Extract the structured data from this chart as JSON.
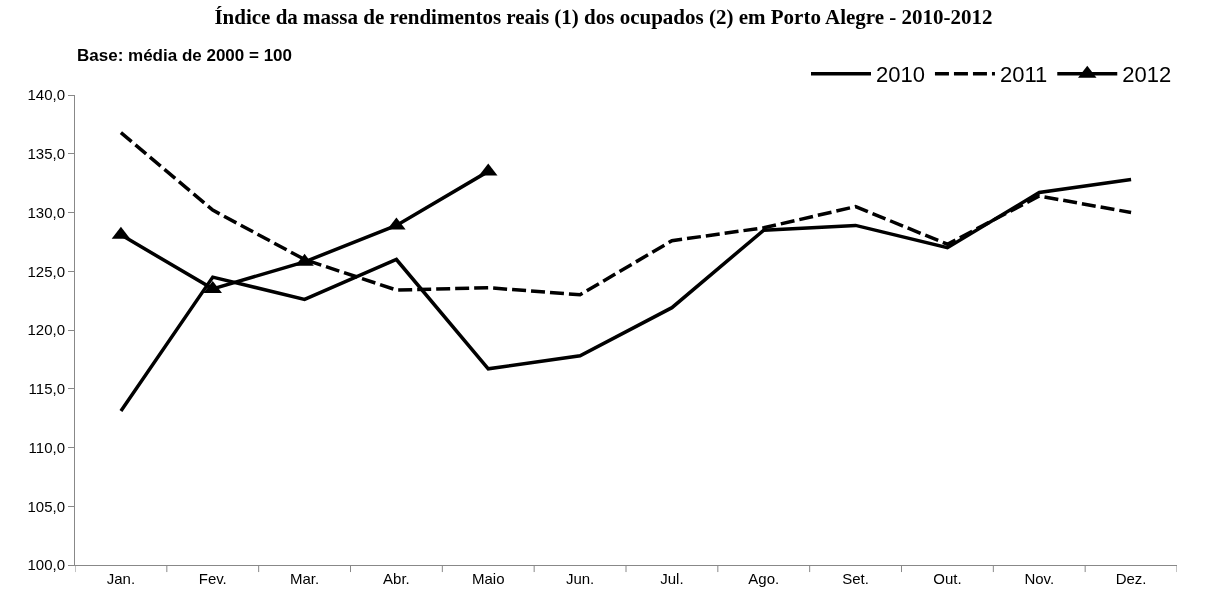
{
  "chart_data": {
    "type": "line",
    "title": "Índice da massa de rendimentos reais (1) dos ocupados (2) em Porto Alegre - 2010-2012",
    "annotations": [
      "Base: média de 2000 = 100"
    ],
    "categories": [
      "Jan.",
      "Fev.",
      "Mar.",
      "Abr.",
      "Maio",
      "Jun.",
      "Jul.",
      "Ago.",
      "Set.",
      "Out.",
      "Nov.",
      "Dez."
    ],
    "series": [
      {
        "name": "2010",
        "color": "#000000",
        "line_style": "solid",
        "marker": "none",
        "values": [
          113.1,
          124.5,
          122.6,
          126.0,
          116.7,
          117.8,
          121.9,
          128.5,
          128.9,
          127.0,
          131.7,
          132.8
        ]
      },
      {
        "name": "2011",
        "color": "#000000",
        "line_style": "dashed",
        "marker": "none",
        "values": [
          136.8,
          130.2,
          126.0,
          123.4,
          123.6,
          123.0,
          127.6,
          128.7,
          130.5,
          127.3,
          131.4,
          130.0
        ]
      },
      {
        "name": "2012",
        "color": "#000000",
        "line_style": "solid",
        "marker": "triangle",
        "values": [
          128.1,
          123.5,
          125.8,
          128.9,
          133.5,
          null,
          null,
          null,
          null,
          null,
          null,
          null
        ]
      }
    ],
    "ylim": [
      100,
      140
    ],
    "yticks": [
      {
        "value": 100,
        "label": "100,0"
      },
      {
        "value": 105,
        "label": "105,0"
      },
      {
        "value": 110,
        "label": "110,0"
      },
      {
        "value": 115,
        "label": "115,0"
      },
      {
        "value": 120,
        "label": "120,0"
      },
      {
        "value": 125,
        "label": "125,0"
      },
      {
        "value": 130,
        "label": "130,0"
      },
      {
        "value": 135,
        "label": "135,0"
      },
      {
        "value": 140,
        "label": "140,0"
      }
    ],
    "grid": false,
    "legend": "top right"
  }
}
